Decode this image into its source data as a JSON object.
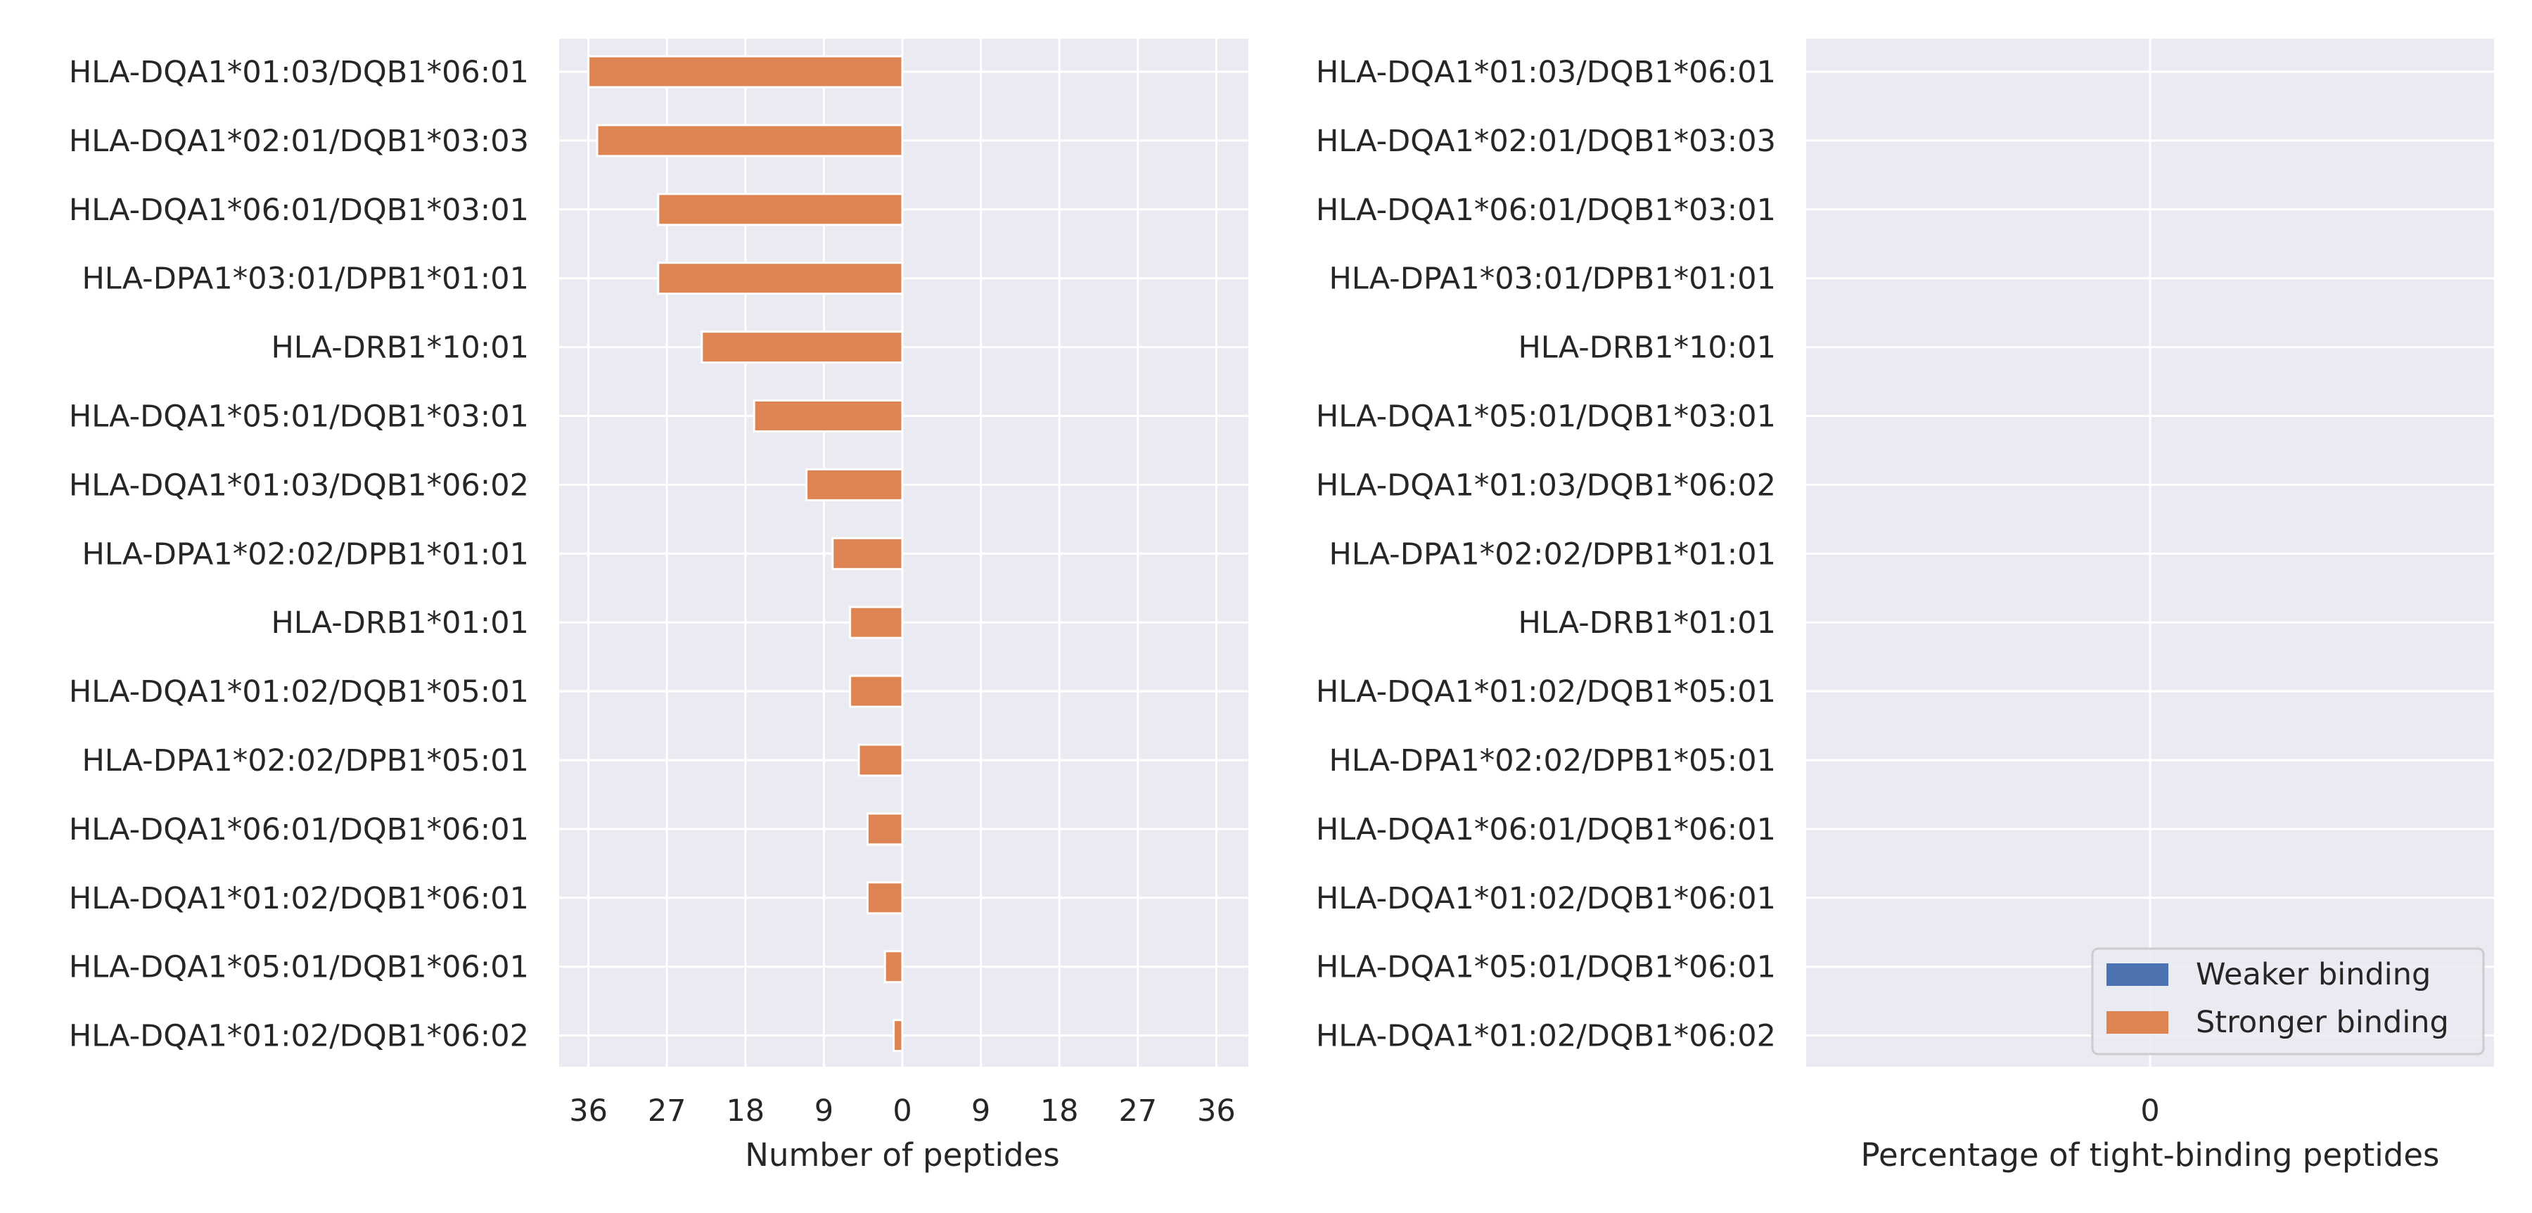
{
  "chart_data": [
    {
      "type": "bar",
      "orientation": "horizontal",
      "diverging": true,
      "categories": [
        "HLA-DQA1*01:03/DQB1*06:01",
        "HLA-DQA1*02:01/DQB1*03:03",
        "HLA-DQA1*06:01/DQB1*03:01",
        "HLA-DPA1*03:01/DPB1*01:01",
        "HLA-DRB1*10:01",
        "HLA-DQA1*05:01/DQB1*03:01",
        "HLA-DQA1*01:03/DQB1*06:02",
        "HLA-DPA1*02:02/DPB1*01:01",
        "HLA-DRB1*01:01",
        "HLA-DQA1*01:02/DQB1*05:01",
        "HLA-DPA1*02:02/DPB1*05:01",
        "HLA-DQA1*06:01/DQB1*06:01",
        "HLA-DQA1*01:02/DQB1*06:01",
        "HLA-DQA1*05:01/DQB1*06:01",
        "HLA-DQA1*01:02/DQB1*06:02"
      ],
      "series": [
        {
          "name": "Weaker binding",
          "color": "#4c72b0",
          "values": [
            0,
            0,
            0,
            0,
            0,
            0,
            0,
            0,
            0,
            0,
            0,
            0,
            0,
            0,
            0
          ]
        },
        {
          "name": "Stronger binding",
          "color": "#dd8452",
          "values": [
            36,
            35,
            28,
            28,
            23,
            17,
            11,
            8,
            6,
            6,
            5,
            4,
            4,
            2,
            1
          ]
        }
      ],
      "xlabel": "Number of peptides",
      "xticks": [
        "36",
        "27",
        "18",
        "9",
        "0",
        "9",
        "18",
        "27",
        "36"
      ],
      "xlim": [
        -40,
        40
      ],
      "grid": true
    },
    {
      "type": "bar",
      "orientation": "horizontal",
      "categories": [
        "HLA-DQA1*01:03/DQB1*06:01",
        "HLA-DQA1*02:01/DQB1*03:03",
        "HLA-DQA1*06:01/DQB1*03:01",
        "HLA-DPA1*03:01/DPB1*01:01",
        "HLA-DRB1*10:01",
        "HLA-DQA1*05:01/DQB1*03:01",
        "HLA-DQA1*01:03/DQB1*06:02",
        "HLA-DPA1*02:02/DPB1*01:01",
        "HLA-DRB1*01:01",
        "HLA-DQA1*01:02/DQB1*05:01",
        "HLA-DPA1*02:02/DPB1*05:01",
        "HLA-DQA1*06:01/DQB1*06:01",
        "HLA-DQA1*01:02/DQB1*06:01",
        "HLA-DQA1*05:01/DQB1*06:01",
        "HLA-DQA1*01:02/DQB1*06:02"
      ],
      "series": [
        {
          "name": "Weaker binding",
          "color": "#4c72b0",
          "values": [
            0,
            0,
            0,
            0,
            0,
            0,
            0,
            0,
            0,
            0,
            0,
            0,
            0,
            0,
            0
          ]
        },
        {
          "name": "Stronger binding",
          "color": "#dd8452",
          "values": [
            0,
            0,
            0,
            0,
            0,
            0,
            0,
            0,
            0,
            0,
            0,
            0,
            0,
            0,
            0
          ]
        }
      ],
      "xlabel": "Percentage of tight-binding peptides",
      "xticks": [
        "0"
      ],
      "grid": true,
      "legend": {
        "position": "lower-right",
        "entries": [
          "Weaker binding",
          "Stronger binding"
        ]
      }
    }
  ],
  "style": {
    "axes_background": "#eaeaf2",
    "grid_color": "#ffffff",
    "text_color": "#262626"
  }
}
